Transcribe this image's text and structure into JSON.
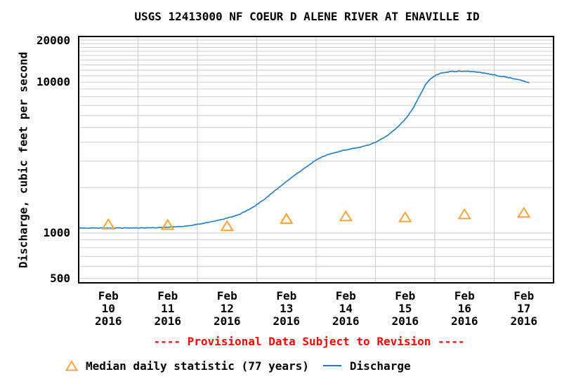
{
  "title": "USGS 12413000 NF COEUR D ALENE RIVER AT ENAVILLE ID",
  "provisional_note": "---- Provisional Data Subject to Revision ----",
  "legend": {
    "median_label": "Median daily statistic (77 years)",
    "discharge_label": "Discharge"
  },
  "colors": {
    "discharge_line": "#1E7AC2",
    "median_marker": "#F9A43B",
    "provisional_text": "#FF0000",
    "gridline": "#CDCDCD",
    "frame_and_text": "#000000",
    "background": "#FFFFFF"
  },
  "chart_data": {
    "type": "line",
    "title": "USGS 12413000 NF COEUR D ALENE RIVER AT ENAVILLE ID",
    "xlabel": "",
    "ylabel": "Discharge, cubic feet per second",
    "y_scale": "log",
    "ylim": [
      467,
      20000
    ],
    "y_axis_ticks": [
      500,
      1000,
      10000,
      20000
    ],
    "y_gridlines": [
      500,
      600,
      700,
      800,
      900,
      1000,
      2000,
      3000,
      4000,
      5000,
      6000,
      7000,
      8000,
      9000,
      10000,
      11000,
      12000,
      13000,
      14000,
      15000,
      16000,
      17000,
      18000,
      19000,
      20000
    ],
    "xlim_days": [
      0,
      8
    ],
    "x_days": [
      {
        "month": "Feb",
        "day": "10",
        "year": "2016"
      },
      {
        "month": "Feb",
        "day": "11",
        "year": "2016"
      },
      {
        "month": "Feb",
        "day": "12",
        "year": "2016"
      },
      {
        "month": "Feb",
        "day": "13",
        "year": "2016"
      },
      {
        "month": "Feb",
        "day": "14",
        "year": "2016"
      },
      {
        "month": "Feb",
        "day": "15",
        "year": "2016"
      },
      {
        "month": "Feb",
        "day": "16",
        "year": "2016"
      },
      {
        "month": "Feb",
        "day": "17",
        "year": "2016"
      }
    ],
    "grid": true,
    "legend_position": "bottom",
    "series": [
      {
        "name": "Discharge",
        "style": "line",
        "units": "cubic feet per second",
        "x_days": [
          0.0,
          0.3,
          0.6,
          0.9,
          1.2,
          1.5,
          1.7,
          1.9,
          2.1,
          2.3,
          2.5,
          2.7,
          2.85,
          3.0,
          3.15,
          3.3,
          3.45,
          3.6,
          3.75,
          3.9,
          4.0,
          4.15,
          4.3,
          4.5,
          4.7,
          4.85,
          5.0,
          5.15,
          5.3,
          5.45,
          5.55,
          5.65,
          5.75,
          5.85,
          5.95,
          6.05,
          6.15,
          6.3,
          6.45,
          6.6,
          6.75,
          6.9,
          7.05,
          7.2,
          7.35,
          7.5,
          7.59
        ],
        "values": [
          1080,
          1078,
          1080,
          1082,
          1085,
          1092,
          1105,
          1125,
          1160,
          1200,
          1255,
          1330,
          1420,
          1540,
          1700,
          1900,
          2120,
          2350,
          2600,
          2850,
          3050,
          3250,
          3400,
          3550,
          3680,
          3800,
          4000,
          4300,
          4750,
          5400,
          6000,
          6900,
          8200,
          9700,
          10700,
          11250,
          11550,
          11750,
          11820,
          11760,
          11600,
          11350,
          11050,
          10800,
          10500,
          10150,
          9900
        ]
      },
      {
        "name": "Median daily statistic (77 years)",
        "style": "open-triangle-markers",
        "units": "cubic feet per second",
        "x_days": [
          0.5,
          1.5,
          2.5,
          3.5,
          4.5,
          5.5,
          6.5,
          7.5
        ],
        "values": [
          1140,
          1130,
          1110,
          1240,
          1290,
          1270,
          1330,
          1360
        ]
      }
    ]
  }
}
